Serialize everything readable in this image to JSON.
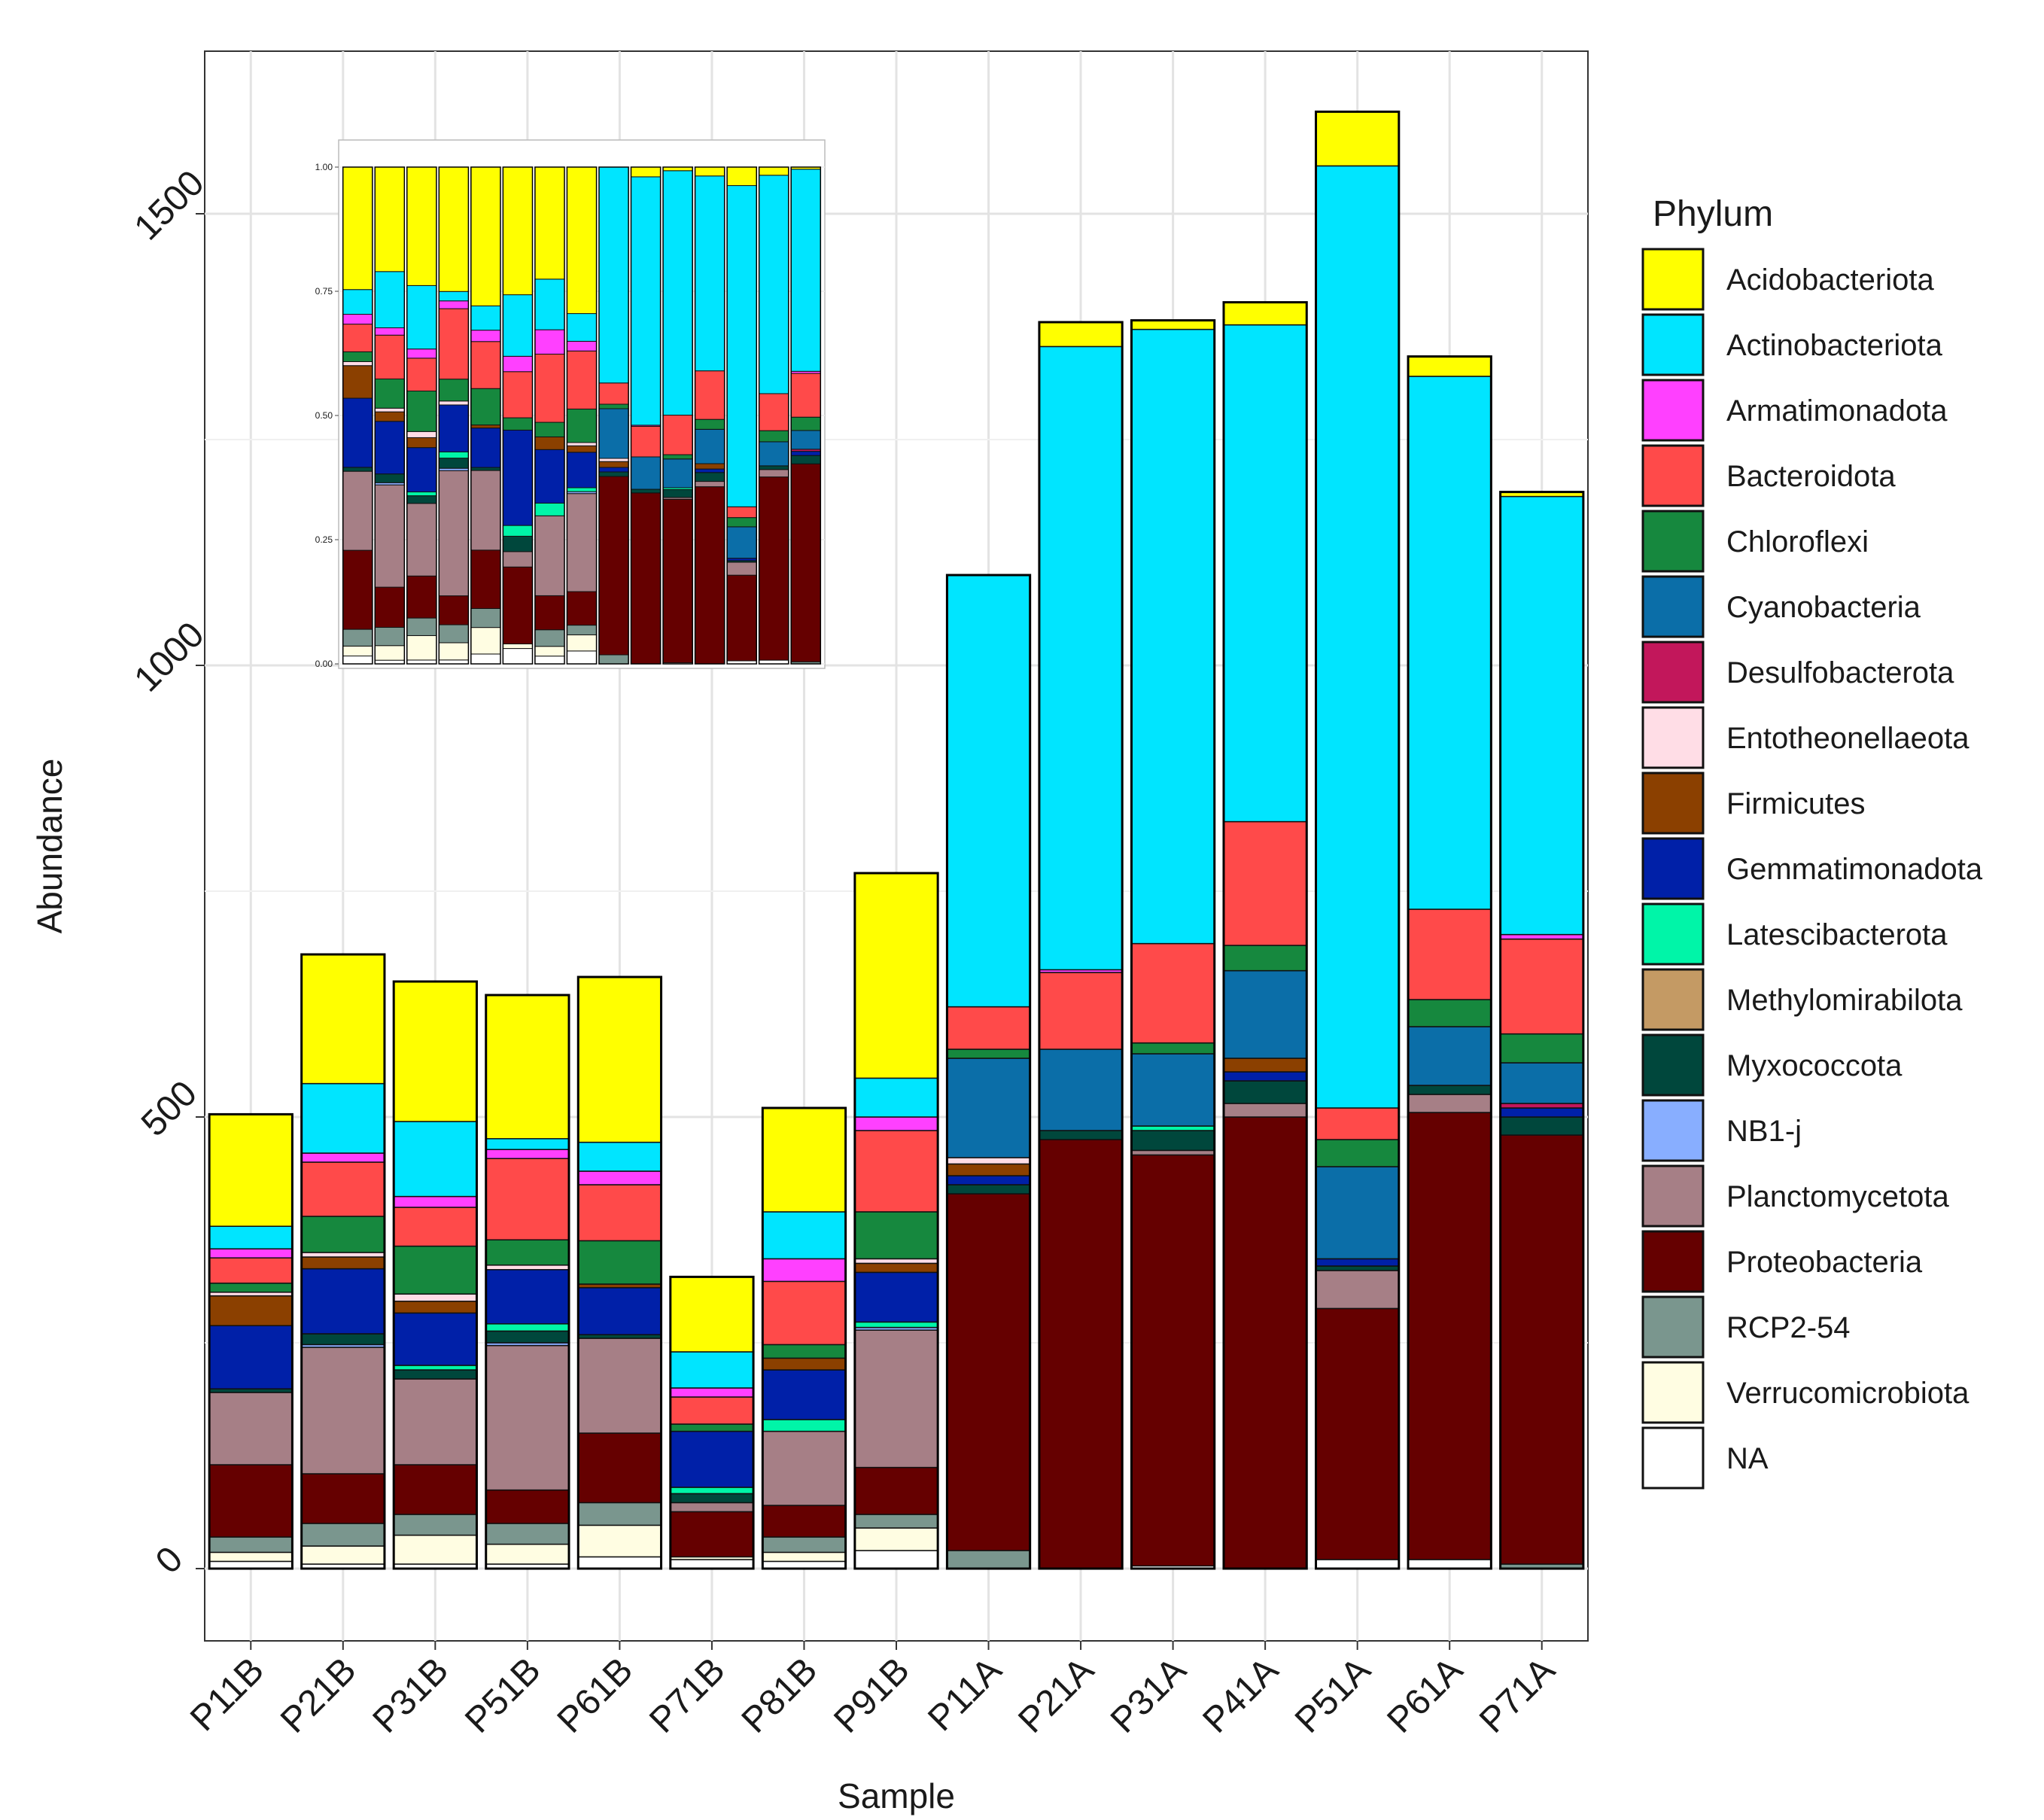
{
  "chart_data": {
    "type": "bar",
    "stacked": true,
    "xlabel": "Sample",
    "ylabel": "Abundance",
    "ylim": [
      -80,
      1680
    ],
    "y_ticks": [
      0,
      500,
      1000,
      1500
    ],
    "legend_title": "Phylum",
    "legend_position": "right",
    "categories": [
      "P11B",
      "P21B",
      "P31B",
      "P51B",
      "P61B",
      "P71B",
      "P81B",
      "P91B",
      "P11A",
      "P21A",
      "P31A",
      "P41A",
      "P51A",
      "P61A",
      "P71A"
    ],
    "phyla": [
      {
        "name": "Acidobacteriota",
        "color": "#FFFF00"
      },
      {
        "name": "Actinobacteriota",
        "color": "#00E5FF"
      },
      {
        "name": "Armatimonadota",
        "color": "#FF40FF"
      },
      {
        "name": "Bacteroidota",
        "color": "#FF4A4A"
      },
      {
        "name": "Chloroflexi",
        "color": "#16883E"
      },
      {
        "name": "Cyanobacteria",
        "color": "#0B6EA8"
      },
      {
        "name": "Desulfobacterota",
        "color": "#C2175B"
      },
      {
        "name": "Entotheonellaeota",
        "color": "#FFDDE6"
      },
      {
        "name": "Firmicutes",
        "color": "#8B4000"
      },
      {
        "name": "Gemmatimonadota",
        "color": "#0020A8"
      },
      {
        "name": "Latescibacterota",
        "color": "#00F5A8"
      },
      {
        "name": "Methylomirabilota",
        "color": "#C49A64"
      },
      {
        "name": "Myxococcota",
        "color": "#00473C"
      },
      {
        "name": "NB1-j",
        "color": "#88AEFF"
      },
      {
        "name": "Planctomycetota",
        "color": "#A67F86"
      },
      {
        "name": "Proteobacteria",
        "color": "#650000"
      },
      {
        "name": "RCP2-54",
        "color": "#7A968E"
      },
      {
        "name": "Verrucomicrobiota",
        "color": "#FFFDE2"
      },
      {
        "name": "NA",
        "color": "#FFFFFF"
      }
    ],
    "stack_order_bottom_to_top": [
      "NA",
      "Verrucomicrobiota",
      "RCP2-54",
      "Proteobacteria",
      "Planctomycetota",
      "NB1-j",
      "Myxococcota",
      "Methylomirabilota",
      "Latescibacterota",
      "Gemmatimonadota",
      "Firmicutes",
      "Entotheonellaeota",
      "Desulfobacterota",
      "Cyanobacteria",
      "Chloroflexi",
      "Bacteroidota",
      "Armatimonadota",
      "Actinobacteriota",
      "Acidobacteriota"
    ],
    "values": {
      "P11B": {
        "NA": 8,
        "Verrucomicrobiota": 10,
        "RCP2-54": 17,
        "Proteobacteria": 80,
        "Planctomycetota": 80,
        "NB1-j": 0,
        "Myxococcota": 4,
        "Methylomirabilota": 0,
        "Latescibacterota": 0,
        "Gemmatimonadota": 70,
        "Firmicutes": 33,
        "Entotheonellaeota": 4,
        "Desulfobacterota": 0,
        "Cyanobacteria": 0,
        "Chloroflexi": 10,
        "Bacteroidota": 28,
        "Armatimonadota": 10,
        "Actinobacteriota": 25,
        "Acidobacteriota": 124
      },
      "P21B": {
        "NA": 5,
        "Verrucomicrobiota": 20,
        "RCP2-54": 25,
        "Proteobacteria": 55,
        "Planctomycetota": 140,
        "NB1-j": 3,
        "Myxococcota": 12,
        "Methylomirabilota": 0,
        "Latescibacterota": 0,
        "Gemmatimonadota": 72,
        "Firmicutes": 13,
        "Entotheonellaeota": 5,
        "Desulfobacterota": 0,
        "Cyanobacteria": 0,
        "Chloroflexi": 40,
        "Bacteroidota": 60,
        "Armatimonadota": 10,
        "Actinobacteriota": 77,
        "Acidobacteriota": 143
      },
      "P31B": {
        "NA": 5,
        "Verrucomicrobiota": 32,
        "RCP2-54": 23,
        "Proteobacteria": 55,
        "Planctomycetota": 95,
        "NB1-j": 0,
        "Myxococcota": 10,
        "Methylomirabilota": 0,
        "Latescibacterota": 5,
        "Gemmatimonadota": 58,
        "Firmicutes": 13,
        "Entotheonellaeota": 8,
        "Desulfobacterota": 0,
        "Cyanobacteria": 0,
        "Chloroflexi": 53,
        "Bacteroidota": 43,
        "Armatimonadota": 12,
        "Actinobacteriota": 83,
        "Acidobacteriota": 155
      },
      "P51B": {
        "NA": 5,
        "Verrucomicrobiota": 22,
        "RCP2-54": 23,
        "Proteobacteria": 37,
        "Planctomycetota": 160,
        "NB1-j": 3,
        "Myxococcota": 13,
        "Methylomirabilota": 0,
        "Latescibacterota": 8,
        "Gemmatimonadota": 60,
        "Firmicutes": 0,
        "Entotheonellaeota": 5,
        "Desulfobacterota": 0,
        "Cyanobacteria": 0,
        "Chloroflexi": 28,
        "Bacteroidota": 90,
        "Armatimonadota": 10,
        "Actinobacteriota": 12,
        "Acidobacteriota": 159
      },
      "P61B": {
        "NA": 13,
        "Verrucomicrobiota": 35,
        "RCP2-54": 25,
        "Proteobacteria": 77,
        "Planctomycetota": 105,
        "NB1-j": 0,
        "Myxococcota": 4,
        "Methylomirabilota": 0,
        "Latescibacterota": 0,
        "Gemmatimonadota": 52,
        "Firmicutes": 4,
        "Entotheonellaeota": 0,
        "Desulfobacterota": 0,
        "Cyanobacteria": 0,
        "Chloroflexi": 48,
        "Bacteroidota": 62,
        "Armatimonadota": 15,
        "Actinobacteriota": 32,
        "Acidobacteriota": 183
      },
      "P71B": {
        "NA": 10,
        "Verrucomicrobiota": 3,
        "RCP2-54": 0,
        "Proteobacteria": 50,
        "Planctomycetota": 10,
        "NB1-j": 0,
        "Myxococcota": 10,
        "Methylomirabilota": 0,
        "Latescibacterota": 7,
        "Gemmatimonadota": 62,
        "Firmicutes": 0,
        "Entotheonellaeota": 0,
        "Desulfobacterota": 0,
        "Cyanobacteria": 0,
        "Chloroflexi": 8,
        "Bacteroidota": 30,
        "Armatimonadota": 10,
        "Actinobacteriota": 40,
        "Acidobacteriota": 83
      },
      "P81B": {
        "NA": 8,
        "Verrucomicrobiota": 10,
        "RCP2-54": 17,
        "Proteobacteria": 35,
        "Planctomycetota": 82,
        "NB1-j": 0,
        "Myxococcota": 0,
        "Methylomirabilota": 0,
        "Latescibacterota": 13,
        "Gemmatimonadota": 55,
        "Firmicutes": 13,
        "Entotheonellaeota": 0,
        "Desulfobacterota": 0,
        "Cyanobacteria": 0,
        "Chloroflexi": 15,
        "Bacteroidota": 70,
        "Armatimonadota": 25,
        "Actinobacteriota": 52,
        "Acidobacteriota": 115
      },
      "P91B": {
        "NA": 20,
        "Verrucomicrobiota": 25,
        "RCP2-54": 15,
        "Proteobacteria": 52,
        "Planctomycetota": 152,
        "NB1-j": 3,
        "Myxococcota": 0,
        "Methylomirabilota": 0,
        "Latescibacterota": 6,
        "Gemmatimonadota": 55,
        "Firmicutes": 10,
        "Entotheonellaeota": 5,
        "Desulfobacterota": 0,
        "Cyanobacteria": 0,
        "Chloroflexi": 52,
        "Bacteroidota": 90,
        "Armatimonadota": 15,
        "Actinobacteriota": 43,
        "Acidobacteriota": 227
      },
      "P11A": {
        "NA": 0,
        "Verrucomicrobiota": 0,
        "RCP2-54": 20,
        "Proteobacteria": 395,
        "Planctomycetota": 0,
        "NB1-j": 0,
        "Myxococcota": 10,
        "Methylomirabilota": 0,
        "Latescibacterota": 0,
        "Gemmatimonadota": 10,
        "Firmicutes": 13,
        "Entotheonellaeota": 7,
        "Desulfobacterota": 0,
        "Cyanobacteria": 110,
        "Chloroflexi": 10,
        "Bacteroidota": 47,
        "Armatimonadota": 0,
        "Actinobacteriota": 478,
        "Acidobacteriota": 0
      },
      "P21A": {
        "NA": 0,
        "Verrucomicrobiota": 0,
        "RCP2-54": 0,
        "Proteobacteria": 475,
        "Planctomycetota": 0,
        "NB1-j": 0,
        "Myxococcota": 10,
        "Methylomirabilota": 0,
        "Latescibacterota": 0,
        "Gemmatimonadota": 0,
        "Firmicutes": 0,
        "Entotheonellaeota": 0,
        "Desulfobacterota": 0,
        "Cyanobacteria": 90,
        "Chloroflexi": 0,
        "Bacteroidota": 85,
        "Armatimonadota": 3,
        "Actinobacteriota": 690,
        "Acidobacteriota": 27
      },
      "P31A": {
        "NA": 3,
        "Verrucomicrobiota": 0,
        "RCP2-54": 0,
        "Proteobacteria": 455,
        "Planctomycetota": 5,
        "NB1-j": 0,
        "Myxococcota": 22,
        "Methylomirabilota": 0,
        "Latescibacterota": 5,
        "Gemmatimonadota": 0,
        "Firmicutes": 0,
        "Entotheonellaeota": 0,
        "Desulfobacterota": 0,
        "Cyanobacteria": 80,
        "Chloroflexi": 12,
        "Bacteroidota": 110,
        "Armatimonadota": 0,
        "Actinobacteriota": 680,
        "Acidobacteriota": 10
      },
      "P41A": {
        "NA": 0,
        "Verrucomicrobiota": 0,
        "RCP2-54": 0,
        "Proteobacteria": 500,
        "Planctomycetota": 15,
        "NB1-j": 0,
        "Myxococcota": 25,
        "Methylomirabilota": 0,
        "Latescibacterota": 0,
        "Gemmatimonadota": 10,
        "Firmicutes": 15,
        "Entotheonellaeota": 0,
        "Desulfobacterota": 0,
        "Cyanobacteria": 97,
        "Chloroflexi": 28,
        "Bacteroidota": 137,
        "Armatimonadota": 0,
        "Actinobacteriota": 550,
        "Acidobacteriota": 25
      },
      "P51A": {
        "NA": 10,
        "Verrucomicrobiota": 0,
        "RCP2-54": 0,
        "Proteobacteria": 278,
        "Planctomycetota": 42,
        "NB1-j": 0,
        "Myxococcota": 5,
        "Methylomirabilota": 0,
        "Latescibacterota": 0,
        "Gemmatimonadota": 8,
        "Firmicutes": 0,
        "Entotheonellaeota": 0,
        "Desulfobacterota": 0,
        "Cyanobacteria": 102,
        "Chloroflexi": 30,
        "Bacteroidota": 35,
        "Armatimonadota": 0,
        "Actinobacteriota": 1043,
        "Acidobacteriota": 60
      },
      "P61A": {
        "NA": 10,
        "Verrucomicrobiota": 0,
        "RCP2-54": 0,
        "Proteobacteria": 495,
        "Planctomycetota": 20,
        "NB1-j": 0,
        "Myxococcota": 10,
        "Methylomirabilota": 0,
        "Latescibacterota": 0,
        "Gemmatimonadota": 0,
        "Firmicutes": 0,
        "Entotheonellaeota": 0,
        "Desulfobacterota": 0,
        "Cyanobacteria": 65,
        "Chloroflexi": 30,
        "Bacteroidota": 100,
        "Armatimonadota": 0,
        "Actinobacteriota": 590,
        "Acidobacteriota": 22
      },
      "P71A": {
        "NA": 0,
        "Verrucomicrobiota": 0,
        "RCP2-54": 5,
        "Proteobacteria": 475,
        "Planctomycetota": 0,
        "NB1-j": 0,
        "Myxococcota": 20,
        "Methylomirabilota": 0,
        "Latescibacterota": 0,
        "Gemmatimonadota": 10,
        "Firmicutes": 0,
        "Entotheonellaeota": 0,
        "Desulfobacterota": 5,
        "Cyanobacteria": 45,
        "Chloroflexi": 32,
        "Bacteroidota": 105,
        "Armatimonadota": 5,
        "Actinobacteriota": 485,
        "Acidobacteriota": 5
      }
    },
    "inset": {
      "type": "bar",
      "stacked": true,
      "normalized": true,
      "ylim": [
        0,
        1
      ],
      "y_ticks": [
        "0.00",
        "0.25",
        "0.50",
        "0.75",
        "1.00"
      ],
      "bar_count": 15,
      "note": "relative abundance of the same samples"
    }
  }
}
